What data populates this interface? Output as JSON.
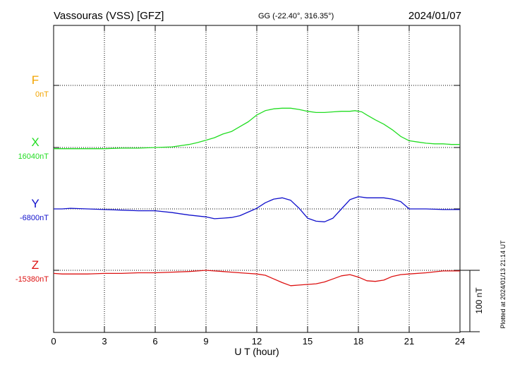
{
  "header": {
    "station": "Vassouras (VSS)  [GFZ]",
    "coords": "GG (-22.40°, 316.35°)",
    "date": "2024/01/07"
  },
  "side_note": "Plotted at 2024/01/13 21:14 UT",
  "scale_label": "100 nT",
  "colors": {
    "F": "#f2a400",
    "X": "#22dd22",
    "Y": "#1111cc",
    "Z": "#dd1111"
  },
  "chart_data": {
    "type": "line",
    "xlabel": "U T (hour)",
    "xlim": [
      0,
      24
    ],
    "x_ticks": [
      "0",
      "3",
      "6",
      "9",
      "12",
      "15",
      "18",
      "21",
      "24"
    ],
    "scale_nT": 100,
    "grid": true,
    "components": [
      {
        "name": "F",
        "baseline_label": "0nT",
        "series": []
      },
      {
        "name": "X",
        "baseline_label": "16040nT",
        "x": [
          0,
          1,
          2,
          3,
          4,
          5,
          6,
          7,
          7.5,
          8,
          8.5,
          9,
          9.5,
          10,
          10.5,
          11,
          11.5,
          12,
          12.5,
          13,
          13.5,
          14,
          14.5,
          15,
          15.5,
          16,
          16.5,
          17,
          17.5,
          17.8,
          18.2,
          18.5,
          19,
          19.5,
          20,
          20.5,
          21,
          21.5,
          22,
          22.5,
          23,
          23.5,
          24
        ],
        "y": [
          16038,
          16038,
          16038,
          16038,
          16039,
          16039,
          16040,
          16041,
          16043,
          16045,
          16048,
          16052,
          16056,
          16062,
          16066,
          16074,
          16082,
          16093,
          16100,
          16103,
          16104,
          16104,
          16102,
          16099,
          16097,
          16097,
          16098,
          16099,
          16099,
          16100,
          16098,
          16093,
          16085,
          16078,
          16069,
          16058,
          16051,
          16049,
          16047,
          16046,
          16046,
          16045,
          16045
        ]
      },
      {
        "name": "Y",
        "baseline_label": "-6800nT",
        "x": [
          0,
          0.5,
          1,
          2,
          3,
          4,
          5,
          6,
          7,
          8,
          9,
          9.5,
          10,
          10.5,
          11,
          11.5,
          12,
          12.5,
          13,
          13.5,
          14,
          14.5,
          15,
          15.5,
          16,
          16.5,
          17,
          17.5,
          18,
          18.5,
          19,
          19.5,
          20,
          20.5,
          21,
          22,
          23,
          24
        ],
        "y": [
          -6800,
          -6800,
          -6799,
          -6800,
          -6801,
          -6802,
          -6803,
          -6803,
          -6806,
          -6810,
          -6813,
          -6816,
          -6815,
          -6814,
          -6811,
          -6805,
          -6799,
          -6790,
          -6784,
          -6782,
          -6786,
          -6799,
          -6815,
          -6820,
          -6821,
          -6815,
          -6800,
          -6785,
          -6780,
          -6782,
          -6782,
          -6782,
          -6784,
          -6788,
          -6800,
          -6800,
          -6801,
          -6801
        ]
      },
      {
        "name": "Z",
        "baseline_label": "-15380nT",
        "x": [
          0,
          0.5,
          1,
          2,
          3,
          4,
          5,
          6,
          7,
          8,
          8.5,
          9,
          9.5,
          10,
          10.5,
          11,
          11.5,
          12,
          12.5,
          13,
          13.5,
          14,
          14.5,
          15,
          15.5,
          16,
          16.5,
          17,
          17.5,
          18,
          18.5,
          19,
          19.5,
          20,
          20.5,
          21,
          22,
          23,
          24
        ],
        "y": [
          -15385,
          -15386,
          -15386,
          -15386,
          -15385,
          -15385,
          -15384,
          -15384,
          -15383,
          -15382,
          -15381,
          -15380,
          -15381,
          -15382,
          -15383,
          -15384,
          -15385,
          -15386,
          -15388,
          -15394,
          -15400,
          -15405,
          -15404,
          -15403,
          -15402,
          -15399,
          -15394,
          -15389,
          -15387,
          -15391,
          -15397,
          -15398,
          -15396,
          -15390,
          -15387,
          -15386,
          -15384,
          -15381,
          -15381
        ]
      }
    ]
  }
}
